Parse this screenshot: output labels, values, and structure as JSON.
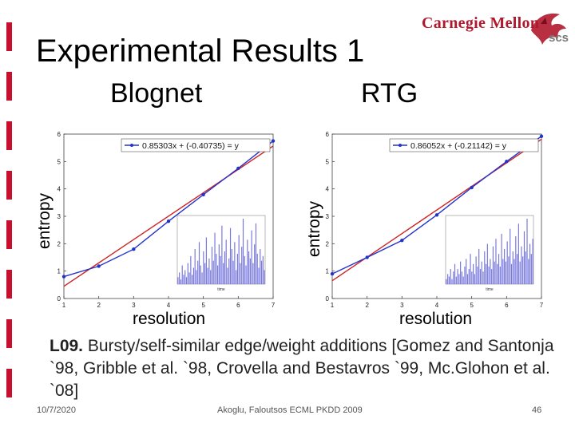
{
  "slide": {
    "title": "Experimental Results 1",
    "subtitle_left": "Blognet",
    "subtitle_right": "RTG",
    "logo_text": "Carnegie Mellon",
    "logo_badge": "scs",
    "body_lead": "L09.",
    "body_text": " Bursty/self-similar edge/weight additions [Gomez and Santonja `98, Gribble et al. `98, Crovella and Bestavros `99, Mc.Glohon et al. `08]",
    "footer_date": "10/7/2020",
    "footer_center": "Akoglu, Faloutsos ECML PKDD 2009",
    "footer_page": "46",
    "accent_color": "#c8102e"
  },
  "chart_data": [
    {
      "type": "line",
      "title": "Blognet",
      "xlabel": "resolution",
      "ylabel": "entropy",
      "xlim": [
        1,
        7
      ],
      "ylim": [
        0,
        6
      ],
      "x_ticks": [
        "1",
        "2",
        "3",
        "4",
        "5",
        "6",
        "7"
      ],
      "y_ticks": [
        "0",
        "1",
        "2",
        "3",
        "4",
        "5",
        "6"
      ],
      "legend_position": "top-right",
      "series": [
        {
          "name": "0.85303x + (-0.40735) = y",
          "color": "#2233cc",
          "x": [
            1,
            2,
            3,
            4,
            5,
            6,
            7
          ],
          "y": [
            0.8,
            1.18,
            1.8,
            2.82,
            3.79,
            4.75,
            5.75
          ]
        },
        {
          "color": "#cc2222",
          "slope": 0.85303,
          "intercept": -0.40735
        }
      ],
      "inset": {
        "type": "bar",
        "xlabel": "time",
        "color": "#7777dd",
        "values": [
          3,
          5,
          2,
          8,
          4,
          6,
          3,
          9,
          5,
          12,
          4,
          7,
          15,
          6,
          10,
          18,
          8,
          5,
          14,
          9,
          20,
          7,
          11,
          6,
          16,
          10,
          22,
          13,
          8,
          17,
          12,
          25,
          9,
          14,
          19,
          7,
          11,
          24,
          15,
          10,
          18,
          6,
          13,
          21,
          9,
          16,
          28,
          12,
          8,
          19,
          14,
          11,
          23,
          9,
          17,
          26,
          13,
          7,
          15,
          10,
          12,
          6
        ]
      }
    },
    {
      "type": "line",
      "title": "RTG",
      "xlabel": "resolution",
      "ylabel": "entropy",
      "xlim": [
        1,
        7
      ],
      "ylim": [
        0,
        6
      ],
      "x_ticks": [
        "1",
        "2",
        "3",
        "4",
        "5",
        "6",
        "7"
      ],
      "y_ticks": [
        "0",
        "1",
        "2",
        "3",
        "4",
        "5",
        "6"
      ],
      "legend_position": "top-right",
      "series": [
        {
          "name": "0.86052x + (-0.21142) = y",
          "color": "#2233cc",
          "x": [
            1,
            2,
            3,
            4,
            5,
            6,
            7
          ],
          "y": [
            0.9,
            1.5,
            2.12,
            3.05,
            4.05,
            5.0,
            5.92
          ]
        },
        {
          "color": "#cc2222",
          "slope": 0.86052,
          "intercept": -0.21142
        }
      ],
      "inset": {
        "type": "bar",
        "xlabel": "time",
        "color": "#7777dd",
        "values": [
          2,
          4,
          3,
          6,
          2,
          5,
          8,
          3,
          6,
          4,
          9,
          5,
          3,
          7,
          10,
          4,
          6,
          12,
          5,
          8,
          4,
          11,
          7,
          14,
          6,
          9,
          5,
          13,
          8,
          16,
          7,
          10,
          6,
          15,
          9,
          18,
          8,
          12,
          7,
          20,
          10,
          14,
          9,
          17,
          11,
          22,
          8,
          13,
          10,
          19,
          12,
          24,
          9,
          15,
          11,
          21,
          13,
          26,
          10,
          16,
          12,
          18
        ]
      }
    }
  ]
}
